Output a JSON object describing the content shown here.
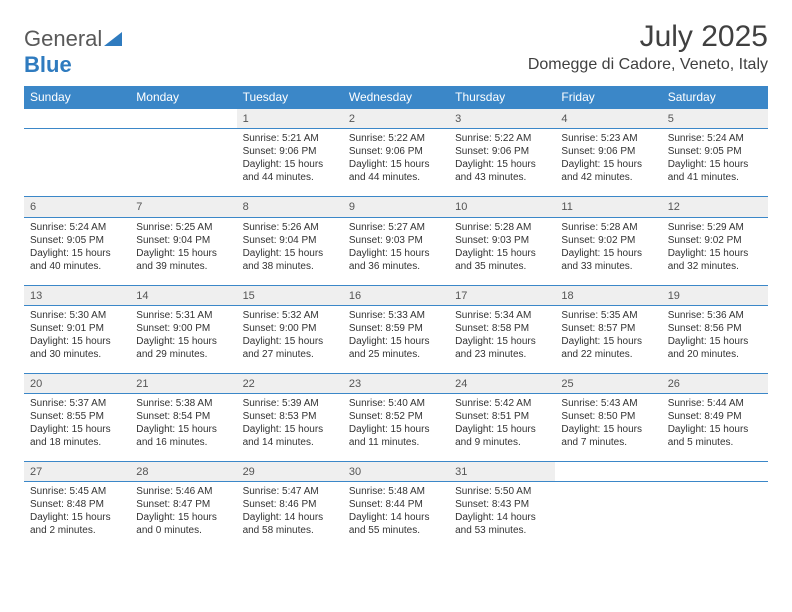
{
  "logo": {
    "part1": "General",
    "part2": "Blue"
  },
  "title": "July 2025",
  "location": "Domegge di Cadore, Veneto, Italy",
  "colors": {
    "header_bg": "#3b87c8",
    "header_text": "#ffffff",
    "daynum_bg": "#efefef",
    "rule": "#3b87c8",
    "logo_blue": "#2f7bbf",
    "text": "#333333"
  },
  "day_headers": [
    "Sunday",
    "Monday",
    "Tuesday",
    "Wednesday",
    "Thursday",
    "Friday",
    "Saturday"
  ],
  "weeks": [
    [
      null,
      null,
      {
        "n": "1",
        "sr": "5:21 AM",
        "ss": "9:06 PM",
        "dl": "15 hours and 44 minutes."
      },
      {
        "n": "2",
        "sr": "5:22 AM",
        "ss": "9:06 PM",
        "dl": "15 hours and 44 minutes."
      },
      {
        "n": "3",
        "sr": "5:22 AM",
        "ss": "9:06 PM",
        "dl": "15 hours and 43 minutes."
      },
      {
        "n": "4",
        "sr": "5:23 AM",
        "ss": "9:06 PM",
        "dl": "15 hours and 42 minutes."
      },
      {
        "n": "5",
        "sr": "5:24 AM",
        "ss": "9:05 PM",
        "dl": "15 hours and 41 minutes."
      }
    ],
    [
      {
        "n": "6",
        "sr": "5:24 AM",
        "ss": "9:05 PM",
        "dl": "15 hours and 40 minutes."
      },
      {
        "n": "7",
        "sr": "5:25 AM",
        "ss": "9:04 PM",
        "dl": "15 hours and 39 minutes."
      },
      {
        "n": "8",
        "sr": "5:26 AM",
        "ss": "9:04 PM",
        "dl": "15 hours and 38 minutes."
      },
      {
        "n": "9",
        "sr": "5:27 AM",
        "ss": "9:03 PM",
        "dl": "15 hours and 36 minutes."
      },
      {
        "n": "10",
        "sr": "5:28 AM",
        "ss": "9:03 PM",
        "dl": "15 hours and 35 minutes."
      },
      {
        "n": "11",
        "sr": "5:28 AM",
        "ss": "9:02 PM",
        "dl": "15 hours and 33 minutes."
      },
      {
        "n": "12",
        "sr": "5:29 AM",
        "ss": "9:02 PM",
        "dl": "15 hours and 32 minutes."
      }
    ],
    [
      {
        "n": "13",
        "sr": "5:30 AM",
        "ss": "9:01 PM",
        "dl": "15 hours and 30 minutes."
      },
      {
        "n": "14",
        "sr": "5:31 AM",
        "ss": "9:00 PM",
        "dl": "15 hours and 29 minutes."
      },
      {
        "n": "15",
        "sr": "5:32 AM",
        "ss": "9:00 PM",
        "dl": "15 hours and 27 minutes."
      },
      {
        "n": "16",
        "sr": "5:33 AM",
        "ss": "8:59 PM",
        "dl": "15 hours and 25 minutes."
      },
      {
        "n": "17",
        "sr": "5:34 AM",
        "ss": "8:58 PM",
        "dl": "15 hours and 23 minutes."
      },
      {
        "n": "18",
        "sr": "5:35 AM",
        "ss": "8:57 PM",
        "dl": "15 hours and 22 minutes."
      },
      {
        "n": "19",
        "sr": "5:36 AM",
        "ss": "8:56 PM",
        "dl": "15 hours and 20 minutes."
      }
    ],
    [
      {
        "n": "20",
        "sr": "5:37 AM",
        "ss": "8:55 PM",
        "dl": "15 hours and 18 minutes."
      },
      {
        "n": "21",
        "sr": "5:38 AM",
        "ss": "8:54 PM",
        "dl": "15 hours and 16 minutes."
      },
      {
        "n": "22",
        "sr": "5:39 AM",
        "ss": "8:53 PM",
        "dl": "15 hours and 14 minutes."
      },
      {
        "n": "23",
        "sr": "5:40 AM",
        "ss": "8:52 PM",
        "dl": "15 hours and 11 minutes."
      },
      {
        "n": "24",
        "sr": "5:42 AM",
        "ss": "8:51 PM",
        "dl": "15 hours and 9 minutes."
      },
      {
        "n": "25",
        "sr": "5:43 AM",
        "ss": "8:50 PM",
        "dl": "15 hours and 7 minutes."
      },
      {
        "n": "26",
        "sr": "5:44 AM",
        "ss": "8:49 PM",
        "dl": "15 hours and 5 minutes."
      }
    ],
    [
      {
        "n": "27",
        "sr": "5:45 AM",
        "ss": "8:48 PM",
        "dl": "15 hours and 2 minutes."
      },
      {
        "n": "28",
        "sr": "5:46 AM",
        "ss": "8:47 PM",
        "dl": "15 hours and 0 minutes."
      },
      {
        "n": "29",
        "sr": "5:47 AM",
        "ss": "8:46 PM",
        "dl": "14 hours and 58 minutes."
      },
      {
        "n": "30",
        "sr": "5:48 AM",
        "ss": "8:44 PM",
        "dl": "14 hours and 55 minutes."
      },
      {
        "n": "31",
        "sr": "5:50 AM",
        "ss": "8:43 PM",
        "dl": "14 hours and 53 minutes."
      },
      null,
      null
    ]
  ],
  "labels": {
    "sunrise": "Sunrise:",
    "sunset": "Sunset:",
    "daylight": "Daylight:"
  }
}
